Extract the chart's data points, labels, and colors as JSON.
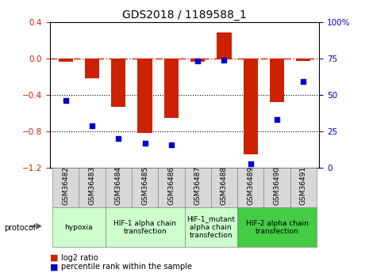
{
  "title": "GDS2018 / 1189588_1",
  "samples": [
    "GSM36482",
    "GSM36483",
    "GSM36484",
    "GSM36485",
    "GSM36486",
    "GSM36487",
    "GSM36488",
    "GSM36489",
    "GSM36490",
    "GSM36491"
  ],
  "log2_ratio": [
    -0.04,
    -0.22,
    -0.53,
    -0.82,
    -0.65,
    -0.04,
    0.28,
    -1.05,
    -0.48,
    -0.03
  ],
  "percentile_rank": [
    46,
    29,
    20,
    17,
    16,
    73,
    74,
    3,
    33,
    59
  ],
  "ylim_left": [
    -1.2,
    0.4
  ],
  "ylim_right": [
    0,
    100
  ],
  "yticks_left": [
    -1.2,
    -0.8,
    -0.4,
    0.0,
    0.4
  ],
  "yticks_right": [
    0,
    25,
    50,
    75,
    100
  ],
  "dotted_lines": [
    -0.4,
    -0.8
  ],
  "bar_color": "#cc2200",
  "dot_color": "#0000cc",
  "protocols": [
    {
      "label": "hypoxia",
      "start": 0,
      "end": 1,
      "color": "#ccffcc"
    },
    {
      "label": "HIF-1 alpha chain\ntransfection",
      "start": 2,
      "end": 4,
      "color": "#ccffcc"
    },
    {
      "label": "HIF-1_mutant\nalpha chain\ntransfection",
      "start": 5,
      "end": 6,
      "color": "#ccffcc"
    },
    {
      "label": "HIF-2 alpha chain\ntransfection",
      "start": 7,
      "end": 9,
      "color": "#44cc44"
    }
  ],
  "legend_bar_label": "log2 ratio",
  "legend_dot_label": "percentile rank within the sample",
  "title_fontsize": 10,
  "tick_fontsize": 7.5,
  "sample_fontsize": 6.5,
  "proto_fontsize": 6.5
}
